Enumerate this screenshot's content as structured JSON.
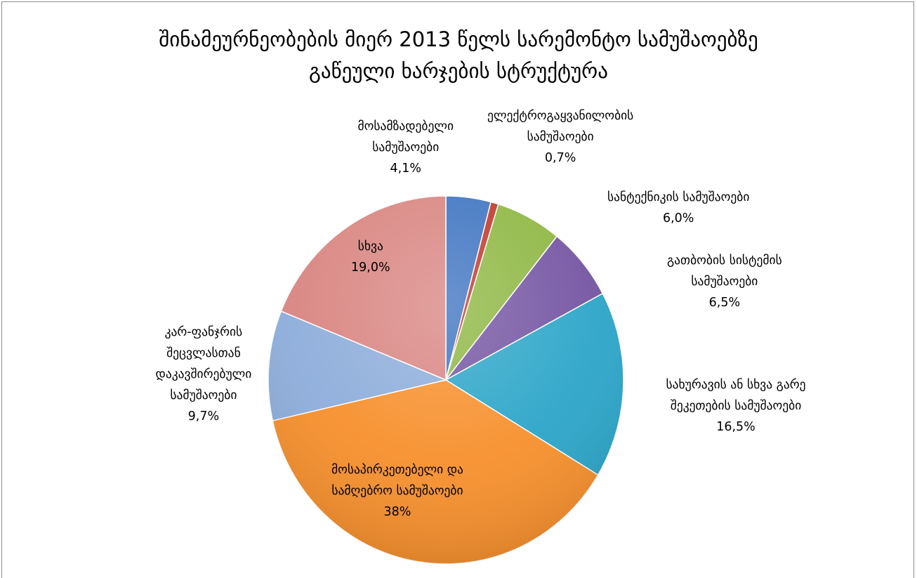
{
  "chart_data": {
    "type": "pie",
    "title": "შინამეურნეობების მიერ 2013 წელს სარემონტო სამუშაოებზე გაწეული ხარჯების სტრუქტურა",
    "title_lines": [
      "შინამეურნეობების მიერ 2013 წელს სარემონტო სამუშაოებზე",
      "გაწეული ხარჯების სტრუქტურა"
    ],
    "start_angle_deg": 0,
    "direction": "clockwise",
    "slices": [
      {
        "label": "მოსამზადებელი სამუშაოები",
        "label_lines": [
          "მოსამზადებელი",
          "სამუშაოები"
        ],
        "value_text": "4,1%",
        "value": 4.1,
        "color": "#3f74c1"
      },
      {
        "label": "ელექტროგაყვანილობის სამუშაოები",
        "label_lines": [
          "ელექტროგაყვანილობის",
          "სამუშაოები"
        ],
        "value_text": "0,7%",
        "value": 0.7,
        "color": "#c0392b"
      },
      {
        "label": "სანტექნიკის სამუშაოები",
        "label_lines": [
          "სანტექნიკის სამუშაოები"
        ],
        "value_text": "6,0%",
        "value": 6.0,
        "color": "#8fb743"
      },
      {
        "label": "გათბობის სისტემის სამუშაოები",
        "label_lines": [
          "გათბობის სისტემის",
          "სამუშაოები"
        ],
        "value_text": "6,5%",
        "value": 6.5,
        "color": "#7556a3"
      },
      {
        "label": "სახურავის ან სხვა გარე შეკეთების სამუშაოები",
        "label_lines": [
          "სახურავის ან სხვა გარე",
          "შეკეთების სამუშაოები"
        ],
        "value_text": "16,5%",
        "value": 16.5,
        "color": "#2ea6c9"
      },
      {
        "label": "მოსაპირკეთებელი და სამღებრო სამუშაოები",
        "label_lines": [
          "მოსაპირკეთებელი და",
          "სამღებრო სამუშაოები"
        ],
        "value_text": "38%",
        "value": 38.0,
        "color": "#f7912f"
      },
      {
        "label": "კარ-ფანჯრის შეცვლასთან დაკავშირებული სამუშაოები",
        "label_lines": [
          "კარ-ფანჯრის",
          "შეცვლასთან",
          "დაკავშირებული",
          "სამუშაოები"
        ],
        "value_text": "9,7%",
        "value": 9.7,
        "color": "#8eaedb"
      },
      {
        "label": "სხვა",
        "label_lines": [
          "სხვა"
        ],
        "value_text": "19,0%",
        "value": 19.0,
        "color": "#d98682"
      }
    ]
  }
}
